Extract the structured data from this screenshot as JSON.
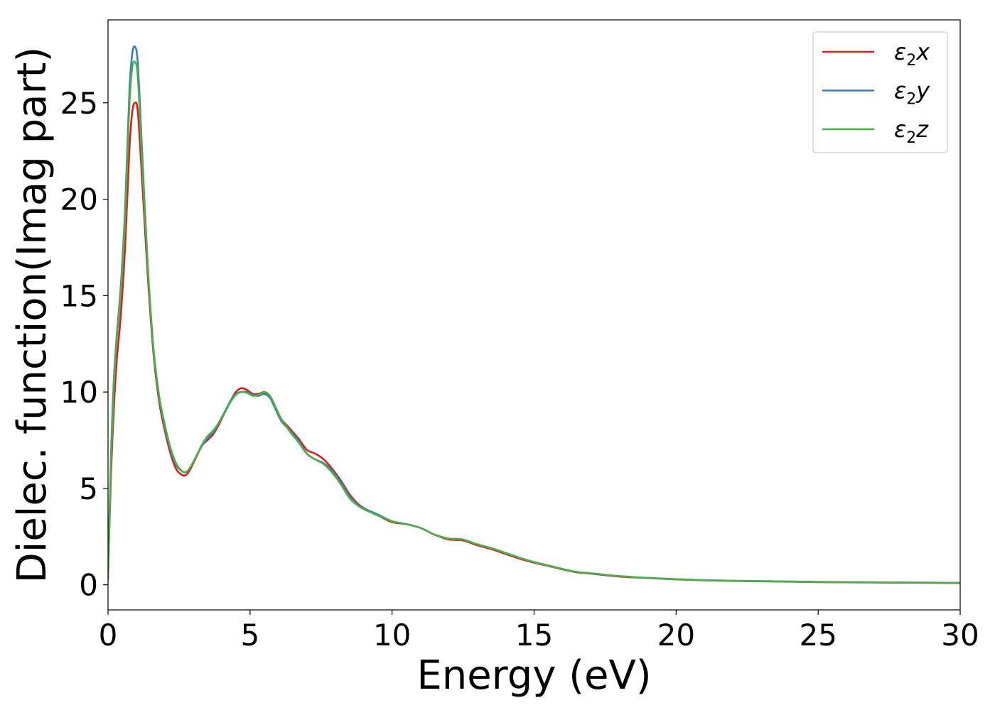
{
  "chart_data": {
    "type": "line",
    "title": "",
    "xlabel": "Energy (eV)",
    "ylabel": "Dielec. function(Imag part)",
    "xlim": [
      0,
      30
    ],
    "ylim": [
      -1.3,
      29.3
    ],
    "xticks": [
      0,
      5,
      10,
      15,
      20,
      25,
      30
    ],
    "yticks": [
      0,
      5,
      10,
      15,
      20,
      25
    ],
    "xtick_labels": [
      "0",
      "5",
      "10",
      "15",
      "20",
      "25",
      "30"
    ],
    "ytick_labels": [
      "0",
      "5",
      "10",
      "15",
      "20",
      "25"
    ],
    "grid": false,
    "legend_position": "top-right",
    "series": [
      {
        "name": "ε₂x",
        "legend_base": "ε",
        "legend_sub": "2",
        "legend_var": "x",
        "color": "#e41a1c",
        "x": [
          0,
          0.1,
          0.2,
          0.3,
          0.45,
          0.6,
          0.75,
          0.85,
          0.95,
          1.05,
          1.2,
          1.4,
          1.6,
          1.8,
          2.0,
          2.2,
          2.4,
          2.6,
          2.75,
          2.9,
          3.1,
          3.3,
          3.5,
          3.7,
          3.9,
          4.1,
          4.3,
          4.5,
          4.7,
          4.9,
          5.1,
          5.3,
          5.5,
          5.7,
          5.9,
          6.1,
          6.4,
          6.7,
          7.0,
          7.3,
          7.6,
          7.9,
          8.2,
          8.5,
          8.8,
          9.1,
          9.5,
          10.0,
          10.5,
          11.0,
          11.5,
          12.0,
          12.5,
          13.0,
          13.5,
          14.0,
          14.5,
          15.0,
          15.5,
          16.0,
          16.5,
          17.0,
          18.0,
          19.0,
          20.0,
          21.0,
          22.0,
          23.0,
          24.0,
          25.0,
          26.0,
          27.0,
          28.0,
          29.0,
          30.0
        ],
        "y": [
          0.3,
          5.5,
          9.0,
          11.5,
          14.0,
          17.5,
          22.5,
          24.5,
          25.0,
          24.5,
          21.0,
          16.0,
          12.0,
          9.5,
          8.0,
          6.8,
          6.0,
          5.7,
          5.7,
          6.0,
          6.6,
          7.2,
          7.5,
          7.8,
          8.3,
          8.9,
          9.5,
          10.0,
          10.2,
          10.1,
          9.9,
          9.9,
          10.0,
          9.8,
          9.2,
          8.6,
          8.1,
          7.6,
          7.0,
          6.8,
          6.5,
          6.0,
          5.4,
          4.7,
          4.2,
          3.9,
          3.6,
          3.25,
          3.15,
          2.95,
          2.6,
          2.35,
          2.3,
          2.05,
          1.85,
          1.6,
          1.35,
          1.15,
          0.98,
          0.8,
          0.65,
          0.58,
          0.43,
          0.35,
          0.28,
          0.23,
          0.2,
          0.18,
          0.16,
          0.14,
          0.13,
          0.12,
          0.11,
          0.1,
          0.09
        ]
      },
      {
        "name": "ε₂y",
        "legend_base": "ε",
        "legend_sub": "2",
        "legend_var": "y",
        "color": "#377eb8",
        "x": [
          0,
          0.1,
          0.2,
          0.3,
          0.45,
          0.6,
          0.75,
          0.85,
          0.95,
          1.05,
          1.2,
          1.4,
          1.6,
          1.8,
          2.0,
          2.2,
          2.4,
          2.6,
          2.75,
          2.9,
          3.1,
          3.3,
          3.5,
          3.7,
          3.9,
          4.1,
          4.3,
          4.5,
          4.7,
          4.9,
          5.1,
          5.3,
          5.5,
          5.7,
          5.9,
          6.1,
          6.4,
          6.7,
          7.0,
          7.3,
          7.6,
          7.9,
          8.2,
          8.5,
          8.8,
          9.1,
          9.5,
          10.0,
          10.5,
          11.0,
          11.5,
          12.0,
          12.5,
          13.0,
          13.5,
          14.0,
          14.5,
          15.0,
          15.5,
          16.0,
          16.5,
          17.0,
          18.0,
          19.0,
          20.0,
          21.0,
          22.0,
          23.0,
          24.0,
          25.0,
          26.0,
          27.0,
          28.0,
          29.0,
          30.0
        ],
        "y": [
          0.3,
          6.5,
          10.5,
          12.8,
          15.5,
          19.5,
          25.5,
          27.5,
          27.9,
          27.0,
          22.5,
          16.5,
          12.2,
          9.7,
          8.2,
          7.0,
          6.2,
          5.9,
          5.85,
          6.1,
          6.65,
          7.2,
          7.6,
          7.9,
          8.4,
          8.95,
          9.5,
          9.9,
          10.0,
          10.0,
          9.85,
          9.8,
          9.9,
          9.7,
          9.1,
          8.5,
          8.0,
          7.5,
          6.8,
          6.5,
          6.3,
          5.9,
          5.3,
          4.6,
          4.15,
          3.9,
          3.65,
          3.3,
          3.15,
          2.95,
          2.6,
          2.4,
          2.35,
          2.1,
          1.9,
          1.65,
          1.4,
          1.18,
          1.0,
          0.82,
          0.67,
          0.6,
          0.45,
          0.36,
          0.29,
          0.24,
          0.21,
          0.19,
          0.17,
          0.15,
          0.14,
          0.13,
          0.12,
          0.11,
          0.1
        ]
      },
      {
        "name": "ε₂z",
        "legend_base": "ε",
        "legend_sub": "2",
        "legend_var": "z",
        "color": "#4daf4a",
        "x": [
          0,
          0.1,
          0.2,
          0.3,
          0.45,
          0.6,
          0.75,
          0.85,
          0.95,
          1.05,
          1.2,
          1.4,
          1.6,
          1.8,
          2.0,
          2.2,
          2.4,
          2.6,
          2.75,
          2.9,
          3.1,
          3.3,
          3.5,
          3.7,
          3.9,
          4.1,
          4.3,
          4.5,
          4.7,
          4.9,
          5.1,
          5.3,
          5.5,
          5.7,
          5.9,
          6.1,
          6.4,
          6.7,
          7.0,
          7.3,
          7.6,
          7.9,
          8.2,
          8.5,
          8.8,
          9.1,
          9.5,
          10.0,
          10.5,
          11.0,
          11.5,
          12.0,
          12.5,
          13.0,
          13.5,
          14.0,
          14.5,
          15.0,
          15.5,
          16.0,
          16.5,
          17.0,
          18.0,
          19.0,
          20.0,
          21.0,
          22.0,
          23.0,
          24.0,
          25.0,
          26.0,
          27.0,
          28.0,
          29.0,
          30.0
        ],
        "y": [
          0.3,
          6.2,
          10.2,
          12.6,
          15.2,
          19.0,
          24.8,
          26.8,
          27.1,
          26.3,
          22.0,
          16.5,
          12.3,
          9.8,
          8.3,
          7.1,
          6.3,
          5.9,
          5.85,
          6.1,
          6.65,
          7.25,
          7.7,
          8.0,
          8.4,
          8.9,
          9.45,
          9.85,
          10.0,
          9.95,
          9.8,
          9.85,
          10.0,
          9.8,
          9.2,
          8.6,
          7.95,
          7.4,
          6.8,
          6.5,
          6.25,
          5.8,
          5.2,
          4.5,
          4.1,
          3.85,
          3.6,
          3.3,
          3.15,
          2.95,
          2.6,
          2.4,
          2.35,
          2.1,
          1.9,
          1.65,
          1.4,
          1.18,
          1.0,
          0.82,
          0.67,
          0.6,
          0.45,
          0.36,
          0.29,
          0.24,
          0.21,
          0.19,
          0.17,
          0.15,
          0.14,
          0.13,
          0.12,
          0.11,
          0.1
        ]
      }
    ]
  }
}
